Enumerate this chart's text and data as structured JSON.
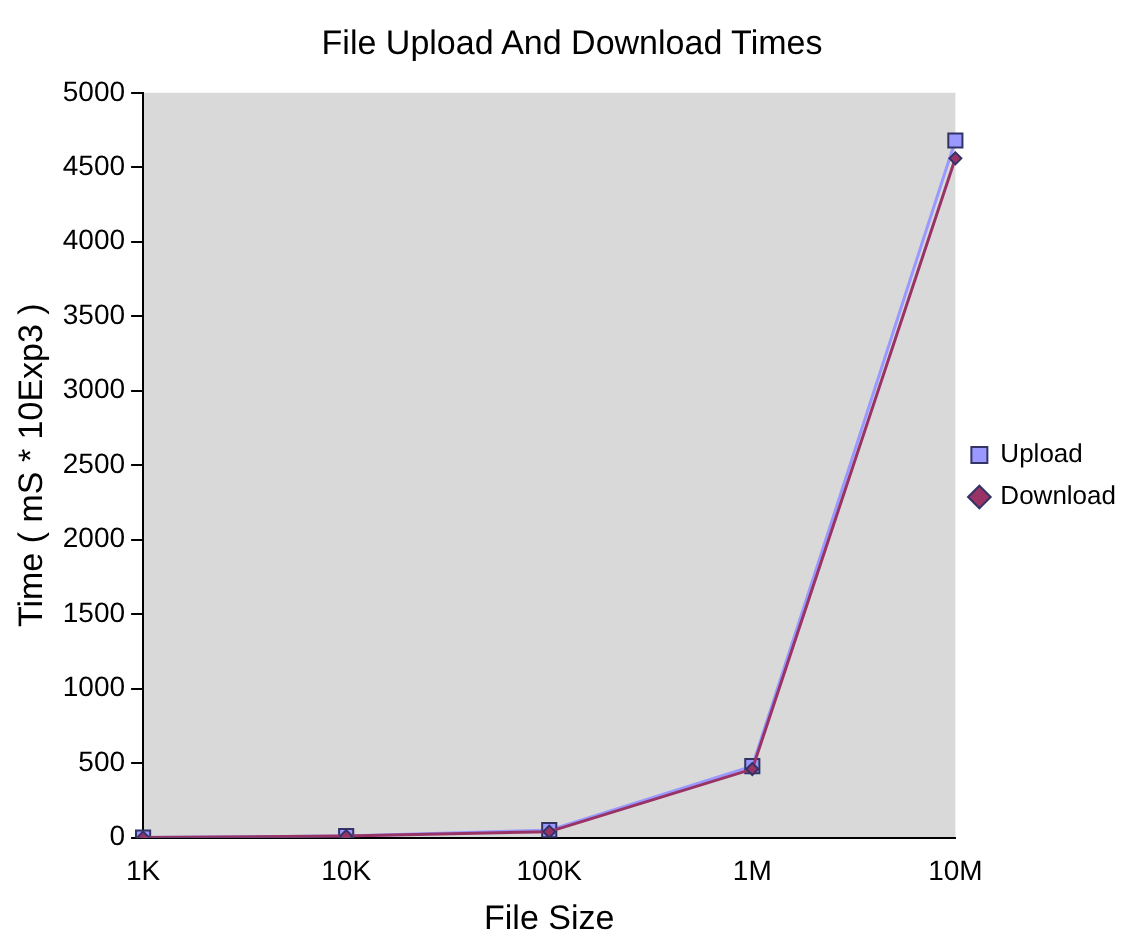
{
  "chart_data": {
    "type": "line",
    "title": "File Upload And Download Times",
    "xlabel": "File Size",
    "ylabel": "Time ( mS * 10Exp3 )",
    "categories": [
      "1K",
      "10K",
      "100K",
      "1M",
      "10M"
    ],
    "series": [
      {
        "name": "Upload",
        "color": "#9999ff",
        "marker": "square",
        "values": [
          0,
          10,
          50,
          480,
          4680
        ]
      },
      {
        "name": "Download",
        "color": "#993366",
        "marker": "diamond",
        "values": [
          0,
          10,
          40,
          460,
          4560
        ]
      }
    ],
    "ylim": [
      0,
      5000
    ],
    "yticks": [
      0,
      500,
      1000,
      1500,
      2000,
      2500,
      3000,
      3500,
      4000,
      4500,
      5000
    ],
    "grid": false,
    "legend": "right"
  }
}
